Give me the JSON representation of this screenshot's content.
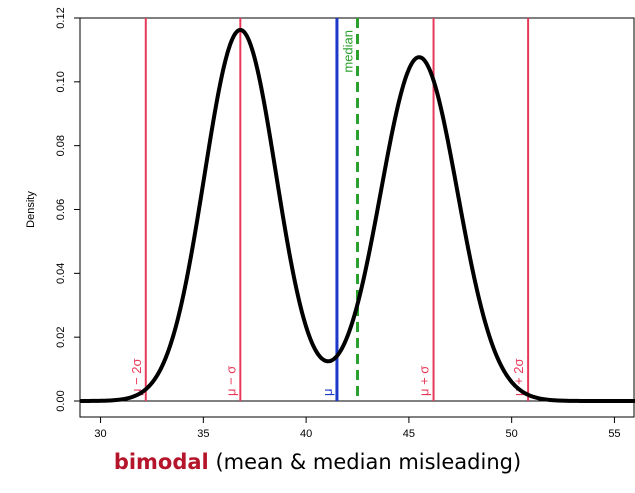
{
  "chart_data": {
    "type": "line",
    "title": "",
    "xlabel": "",
    "ylabel": "Density",
    "xlim": [
      29,
      56
    ],
    "ylim": [
      0,
      0.12
    ],
    "xticks": [
      30,
      35,
      40,
      45,
      50,
      55
    ],
    "yticks": [
      0.0,
      0.02,
      0.04,
      0.06,
      0.08,
      0.1,
      0.12
    ],
    "xtick_labels": [
      "30",
      "35",
      "40",
      "45",
      "50",
      "55"
    ],
    "ytick_labels": [
      "0.00",
      "0.02",
      "0.04",
      "0.06",
      "0.08",
      "0.10",
      "0.12"
    ],
    "density_components": [
      {
        "mean": 36.8,
        "sd": 1.75,
        "weight": 0.51
      },
      {
        "mean": 45.5,
        "sd": 1.87,
        "weight": 0.505
      }
    ],
    "reference_lines": [
      {
        "label": "μ − 2σ",
        "x": 32.2,
        "color": "#e8385a",
        "style": "solid"
      },
      {
        "label": "μ − σ",
        "x": 36.8,
        "color": "#e8385a",
        "style": "solid"
      },
      {
        "label": "μ",
        "x": 41.5,
        "color": "#1a39c9",
        "style": "solid"
      },
      {
        "label": "median",
        "x": 42.5,
        "color": "#2ca02c",
        "style": "dashed"
      },
      {
        "label": "μ + σ",
        "x": 46.2,
        "color": "#e8385a",
        "style": "solid"
      },
      {
        "label": "μ + 2σ",
        "x": 50.8,
        "color": "#e8385a",
        "style": "solid"
      }
    ],
    "curve_color": "#000000",
    "grid": false
  },
  "caption": {
    "accent": "bimodal",
    "rest": "(mean & median misleading)",
    "accent_color": "#b5152b"
  }
}
